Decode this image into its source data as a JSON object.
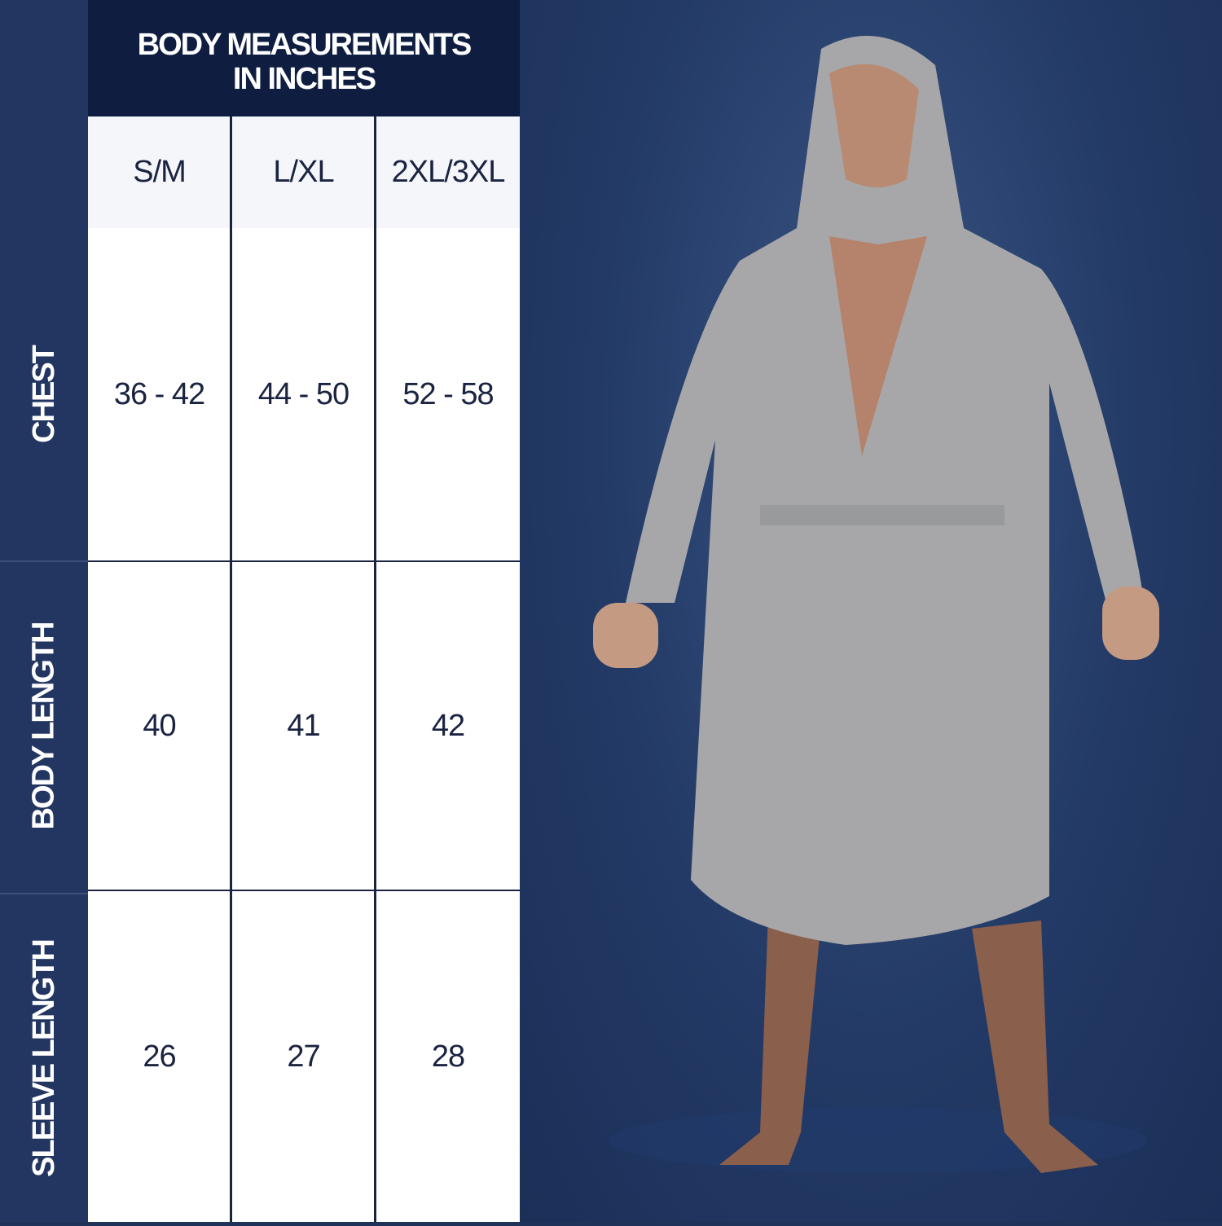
{
  "title_line1": "BODY MEASUREMENTS",
  "title_line2": "IN INCHES",
  "columns": [
    "S/M",
    "L/XL",
    "2XL/3XL"
  ],
  "rows": [
    {
      "label": "CHEST",
      "values": [
        "36 - 42",
        "44 - 50",
        "52 - 58"
      ]
    },
    {
      "label": "BODY LENGTH",
      "values": [
        "40",
        "41",
        "42"
      ]
    },
    {
      "label": "SLEEVE LENGTH",
      "values": [
        "26",
        "27",
        "28"
      ]
    }
  ],
  "colors": {
    "side": "#223661",
    "header": "#0e1d40",
    "text": "#1a2340",
    "header_row": "#f5f6f9"
  }
}
